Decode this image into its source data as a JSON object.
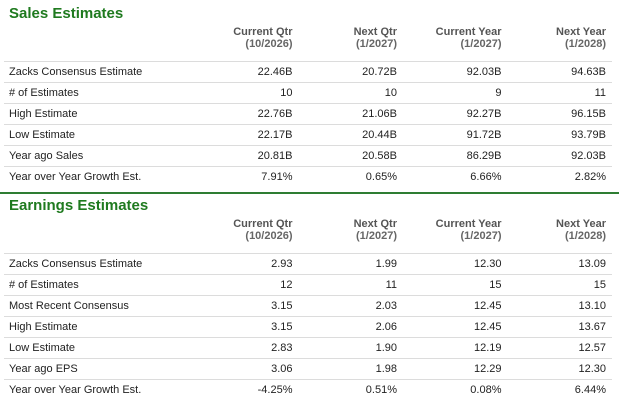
{
  "sales": {
    "title": "Sales Estimates",
    "columns": [
      {
        "top": "Current Qtr",
        "sub": "(10/2026)"
      },
      {
        "top": "Next Qtr",
        "sub": "(1/2027)"
      },
      {
        "top": "Current Year",
        "sub": "(1/2027)"
      },
      {
        "top": "Next Year",
        "sub": "(1/2028)"
      }
    ],
    "rows": [
      {
        "label": "Zacks Consensus Estimate",
        "values": [
          "22.46B",
          "20.72B",
          "92.03B",
          "94.63B"
        ]
      },
      {
        "label": "# of Estimates",
        "values": [
          "10",
          "10",
          "9",
          "11"
        ]
      },
      {
        "label": "High Estimate",
        "values": [
          "22.76B",
          "21.06B",
          "92.27B",
          "96.15B"
        ]
      },
      {
        "label": "Low Estimate",
        "values": [
          "22.17B",
          "20.44B",
          "91.72B",
          "93.79B"
        ]
      },
      {
        "label": "Year ago Sales",
        "values": [
          "20.81B",
          "20.58B",
          "86.29B",
          "92.03B"
        ]
      },
      {
        "label": "Year over Year Growth Est.",
        "values": [
          "7.91%",
          "0.65%",
          "6.66%",
          "2.82%"
        ]
      }
    ]
  },
  "earnings": {
    "title": "Earnings Estimates",
    "columns": [
      {
        "top": "Current Qtr",
        "sub": "(10/2026)"
      },
      {
        "top": "Next Qtr",
        "sub": "(1/2027)"
      },
      {
        "top": "Current Year",
        "sub": "(1/2027)"
      },
      {
        "top": "Next Year",
        "sub": "(1/2028)"
      }
    ],
    "rows": [
      {
        "label": "Zacks Consensus Estimate",
        "values": [
          "2.93",
          "1.99",
          "12.30",
          "13.09"
        ]
      },
      {
        "label": "# of Estimates",
        "values": [
          "12",
          "11",
          "15",
          "15"
        ]
      },
      {
        "label": "Most Recent Consensus",
        "values": [
          "3.15",
          "2.03",
          "12.45",
          "13.10"
        ]
      },
      {
        "label": "High Estimate",
        "values": [
          "3.15",
          "2.06",
          "12.45",
          "13.67"
        ]
      },
      {
        "label": "Low Estimate",
        "values": [
          "2.83",
          "1.90",
          "12.19",
          "12.57"
        ]
      },
      {
        "label": "Year ago EPS",
        "values": [
          "3.06",
          "1.98",
          "12.29",
          "12.30"
        ]
      },
      {
        "label": "Year over Year Growth Est.",
        "values": [
          "-4.25%",
          "0.51%",
          "0.08%",
          "6.44%"
        ]
      }
    ]
  }
}
